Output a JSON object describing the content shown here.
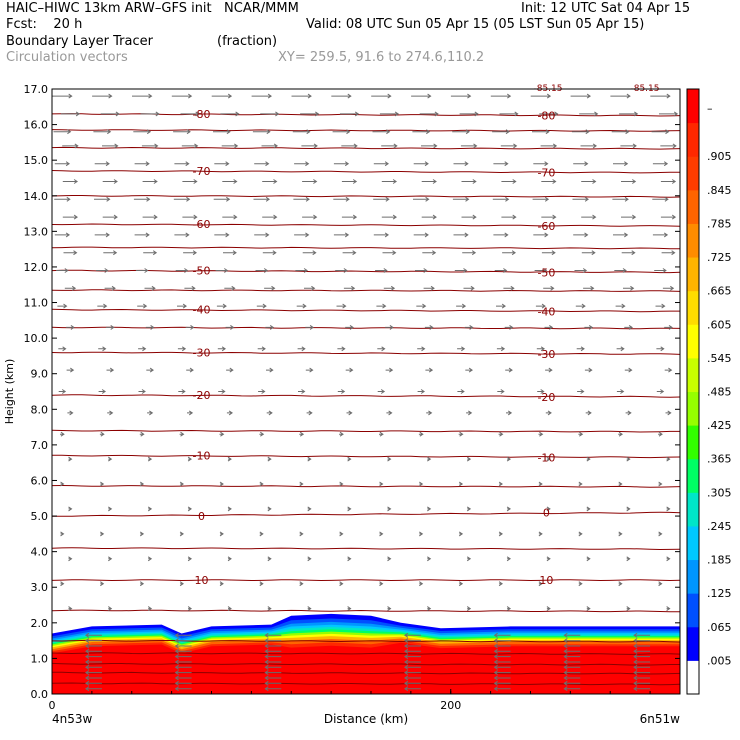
{
  "header": {
    "line1_left": "HAIC–HIWC 13km ARW–GFS init   NCAR/MMM",
    "line1_right": "Init: 12 UTC Sat 04 Apr 15",
    "fcst_label": "Fcst:    20 h",
    "valid": "Valid: 08 UTC Sun 05 Apr 15 (05 LST Sun 05 Apr 15)",
    "field_name": "Boundary Layer Tracer",
    "field_units": "(fraction)",
    "overlay_name": "Circulation vectors",
    "xy_info": "XY= 259.5, 91.6 to 274.6,110.2"
  },
  "chart_data": {
    "type": "heatmap",
    "title": "Boundary Layer Tracer",
    "xlabel": "Distance (km)",
    "ylabel": "Height (km)",
    "xlim": [
      0,
      315
    ],
    "ylim": [
      0,
      17
    ],
    "y_ticks": [
      "0.0",
      "1.0",
      "2.0",
      "3.0",
      "4.0",
      "5.0",
      "6.0",
      "7.0",
      "8.0",
      "9.0",
      "10.0",
      "11.0",
      "12.0",
      "13.0",
      "14.0",
      "15.0",
      "16.0",
      "17.0"
    ],
    "x_ticks": [
      {
        "x": 0,
        "label": "0"
      },
      {
        "x": 200,
        "label": "200"
      }
    ],
    "x_endpoints": {
      "left": "4n53w",
      "right": "6n51w"
    },
    "colorbar": {
      "labels": [
        ".005",
        ".065",
        ".125",
        ".185",
        ".245",
        ".305",
        ".365",
        ".425",
        ".485",
        ".545",
        ".605",
        ".665",
        ".725",
        ".785",
        ".845",
        ".905",
        "–"
      ],
      "colors": [
        "#ffffff",
        "#0000ff",
        "#0050ff",
        "#0096ff",
        "#00c8ff",
        "#00e6c8",
        "#00ff64",
        "#32ff00",
        "#96ff00",
        "#c8ff00",
        "#ffff00",
        "#ffdc00",
        "#ffb400",
        "#ff8c00",
        "#ff6400",
        "#ff3c00",
        "#ff2800",
        "#ff0000"
      ]
    },
    "tracer_top_km": [
      {
        "x": 0,
        "y": 1.7
      },
      {
        "x": 20,
        "y": 1.9
      },
      {
        "x": 55,
        "y": 1.95
      },
      {
        "x": 65,
        "y": 1.7
      },
      {
        "x": 80,
        "y": 1.9
      },
      {
        "x": 110,
        "y": 1.95
      },
      {
        "x": 120,
        "y": 2.2
      },
      {
        "x": 140,
        "y": 2.25
      },
      {
        "x": 160,
        "y": 2.2
      },
      {
        "x": 175,
        "y": 2.0
      },
      {
        "x": 195,
        "y": 1.85
      },
      {
        "x": 230,
        "y": 1.9
      },
      {
        "x": 315,
        "y": 1.9
      }
    ],
    "temperature_contours_C": [
      {
        "value": -80,
        "label": "-80",
        "y_left": 16.3,
        "y_right": 16.25
      },
      {
        "value": -70,
        "label": "-70",
        "y_left": 14.7,
        "y_right": 14.65
      },
      {
        "value": -60,
        "label": "-60",
        "y_left": 13.2,
        "y_right": 13.15
      },
      {
        "value": -50,
        "label": "-50",
        "y_left": 11.9,
        "y_right": 11.85
      },
      {
        "value": -40,
        "label": "-40",
        "y_left": 10.8,
        "y_right": 10.75
      },
      {
        "value": -30,
        "label": "-30",
        "y_left": 9.6,
        "y_right": 9.55
      },
      {
        "value": -20,
        "label": "-20",
        "y_left": 8.4,
        "y_right": 8.35
      },
      {
        "value": -10,
        "label": "-10",
        "y_left": 6.7,
        "y_right": 6.65
      },
      {
        "value": 0,
        "label": "0",
        "y_left": 5.0,
        "y_right": 5.1
      },
      {
        "value": 10,
        "label": "10",
        "y_left": 3.2,
        "y_right": 3.2
      }
    ],
    "unlabeled_contour_heights_km": [
      0.3,
      0.6,
      0.85,
      1.15,
      1.5,
      2.35,
      4.1,
      5.85,
      7.4,
      10.3,
      11.35,
      12.55,
      14.0,
      15.35,
      15.85
    ],
    "top_cut_labels": [
      "-85.15",
      "-85.15"
    ],
    "wind_rows_km": [
      16.8,
      16.3,
      15.8,
      15.4,
      14.9,
      14.4,
      13.9,
      13.4,
      12.9,
      12.4,
      11.9,
      11.4,
      10.9,
      10.3,
      9.7,
      9.1,
      8.5,
      7.9,
      7.3,
      6.6,
      5.9,
      5.2,
      4.5,
      3.8,
      3.1,
      2.4
    ],
    "wind_row_speed_rel": [
      0.75,
      0.7,
      0.65,
      0.6,
      0.55,
      0.55,
      0.6,
      0.55,
      0.55,
      0.5,
      0.45,
      0.4,
      0.35,
      0.3,
      0.28,
      0.26,
      0.25,
      0.2,
      0.15,
      0.1,
      0.08,
      0.05,
      0.05,
      0.04,
      0.04,
      0.04
    ],
    "wind_columns_x_km": [
      5,
      25,
      45,
      65,
      85,
      105,
      125,
      145,
      165,
      185,
      205,
      225,
      245,
      265,
      285,
      305
    ],
    "low_level_easterly_columns_x_km": [
      20,
      65,
      110,
      180,
      225,
      260,
      295
    ]
  }
}
